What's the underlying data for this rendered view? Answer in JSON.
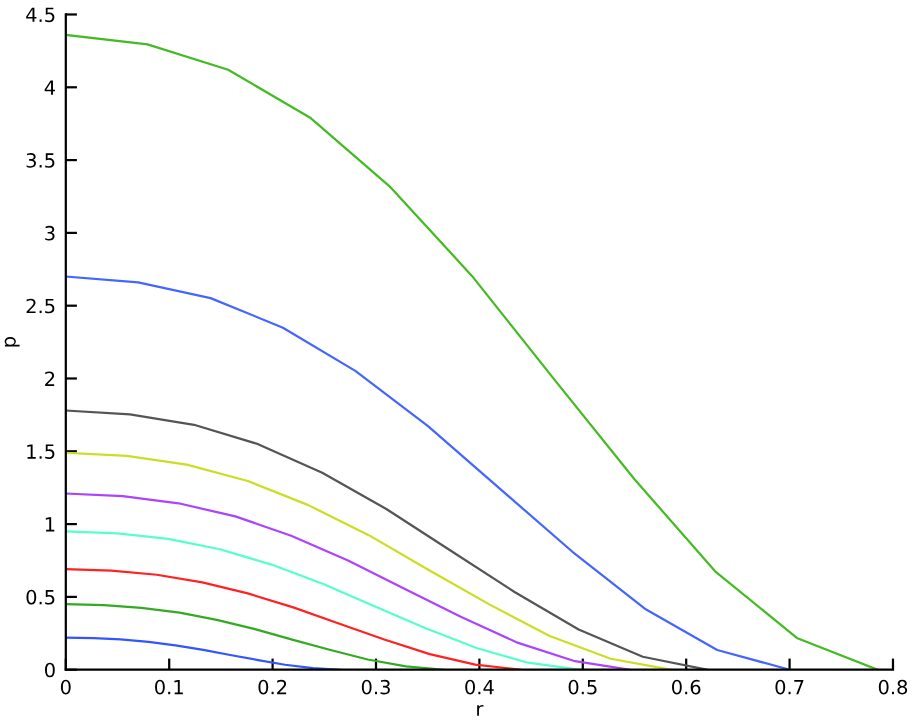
{
  "chart_data": {
    "type": "line",
    "xlabel": "r",
    "ylabel": "p",
    "xlim": [
      0,
      0.8
    ],
    "ylim": [
      0,
      4.5
    ],
    "xticks": [
      0,
      0.1,
      0.2,
      0.3,
      0.4,
      0.5,
      0.6,
      0.7,
      0.8
    ],
    "yticks": [
      0,
      0.5,
      1,
      1.5,
      2,
      2.5,
      3,
      3.5,
      4,
      4.5
    ],
    "grid": false,
    "legend": false,
    "marker": "none",
    "line_style": "solid",
    "series": [
      {
        "color": "#3355ff",
        "x": [
          0,
          0.027,
          0.053,
          0.08,
          0.106,
          0.133,
          0.159,
          0.186,
          0.212,
          0.239,
          0.265
        ],
        "values": [
          0.22,
          0.217,
          0.208,
          0.191,
          0.167,
          0.136,
          0.101,
          0.066,
          0.034,
          0.011,
          0
        ]
      },
      {
        "color": "#33aa22",
        "x": [
          0,
          0.037,
          0.073,
          0.11,
          0.146,
          0.183,
          0.219,
          0.256,
          0.292,
          0.329,
          0.365
        ],
        "values": [
          0.45,
          0.443,
          0.425,
          0.392,
          0.342,
          0.279,
          0.207,
          0.135,
          0.07,
          0.023,
          0
        ]
      },
      {
        "color": "#ff2222",
        "x": [
          0,
          0.044,
          0.088,
          0.132,
          0.176,
          0.22,
          0.264,
          0.308,
          0.352,
          0.396,
          0.44
        ],
        "values": [
          0.69,
          0.68,
          0.652,
          0.6,
          0.524,
          0.428,
          0.317,
          0.207,
          0.107,
          0.035,
          0
        ]
      },
      {
        "color": "#55ffcc",
        "x": [
          0,
          0.05,
          0.099,
          0.149,
          0.199,
          0.249,
          0.298,
          0.348,
          0.398,
          0.447,
          0.497
        ],
        "values": [
          0.95,
          0.936,
          0.898,
          0.827,
          0.722,
          0.589,
          0.437,
          0.285,
          0.147,
          0.048,
          0
        ]
      },
      {
        "color": "#aa44ff",
        "x": [
          0,
          0.055,
          0.109,
          0.164,
          0.218,
          0.273,
          0.327,
          0.382,
          0.436,
          0.491,
          0.545
        ],
        "values": [
          1.21,
          1.192,
          1.143,
          1.053,
          0.92,
          0.75,
          0.557,
          0.363,
          0.188,
          0.061,
          0
        ]
      },
      {
        "color": "#ccdd22",
        "x": [
          0,
          0.059,
          0.117,
          0.176,
          0.234,
          0.293,
          0.351,
          0.41,
          0.468,
          0.527,
          0.585
        ],
        "values": [
          1.49,
          1.468,
          1.408,
          1.296,
          1.132,
          0.924,
          0.685,
          0.447,
          0.231,
          0.075,
          0
        ]
      },
      {
        "color": "#555555",
        "x": [
          0,
          0.062,
          0.124,
          0.186,
          0.248,
          0.31,
          0.372,
          0.434,
          0.496,
          0.558,
          0.62
        ],
        "values": [
          1.78,
          1.753,
          1.682,
          1.549,
          1.353,
          1.104,
          0.819,
          0.534,
          0.276,
          0.089,
          0
        ]
      },
      {
        "color": "#4466ff",
        "x": [
          0,
          0.07,
          0.14,
          0.21,
          0.28,
          0.35,
          0.42,
          0.49,
          0.56,
          0.63,
          0.7
        ],
        "values": [
          2.7,
          2.66,
          2.552,
          2.349,
          2.052,
          1.674,
          1.242,
          0.81,
          0.419,
          0.135,
          0
        ]
      },
      {
        "color": "#44bb22",
        "x": [
          0,
          0.079,
          0.157,
          0.236,
          0.314,
          0.393,
          0.471,
          0.55,
          0.628,
          0.707,
          0.785
        ],
        "values": [
          4.36,
          4.295,
          4.12,
          3.793,
          3.314,
          2.703,
          2.006,
          1.308,
          0.676,
          0.218,
          0
        ]
      }
    ]
  }
}
